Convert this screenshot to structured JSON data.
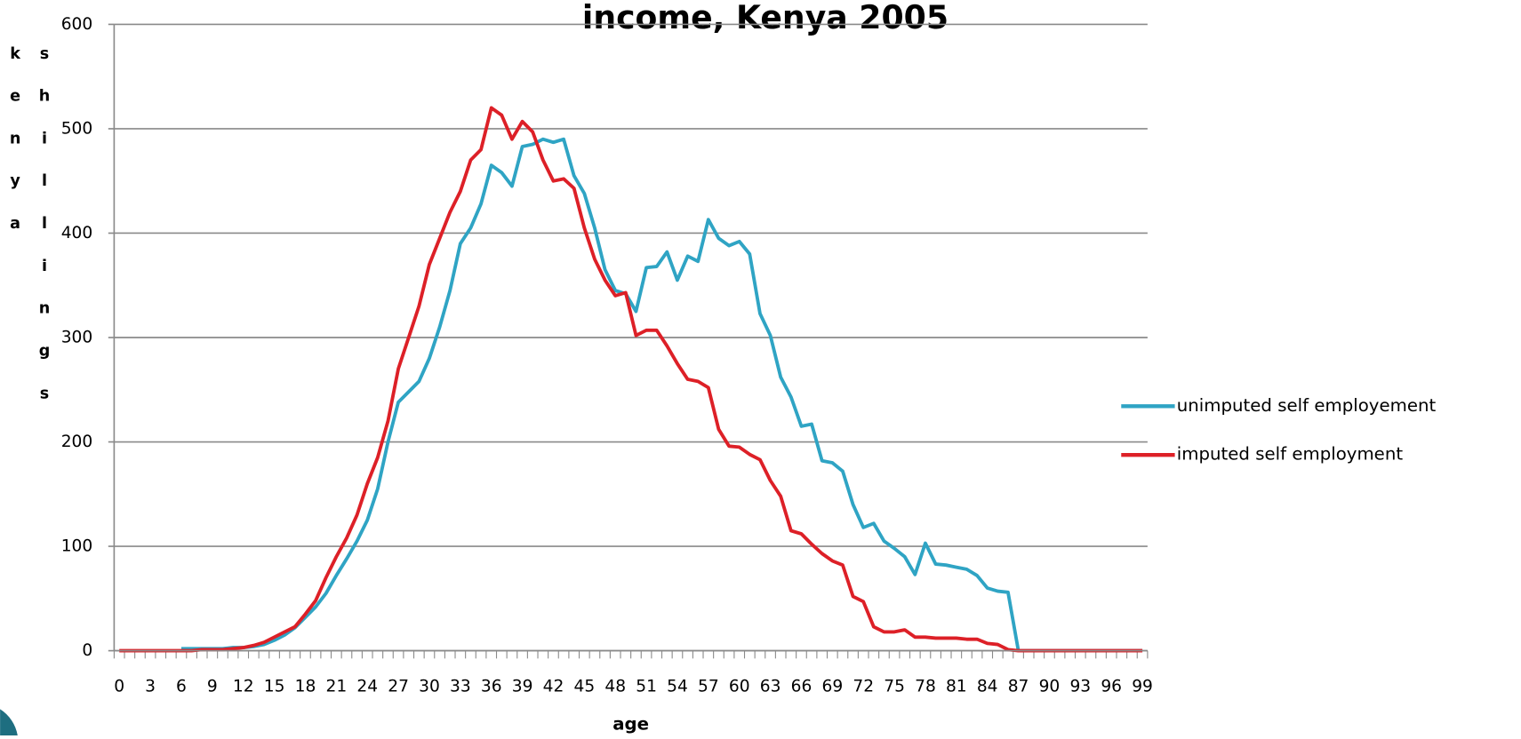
{
  "chart_data": {
    "type": "line",
    "title": "income, Kenya 2005",
    "x_label": "age",
    "y_label": "kenya shillings",
    "categories": [
      "0",
      null,
      null,
      "3",
      null,
      null,
      "6",
      null,
      null,
      "9",
      null,
      null,
      "12",
      null,
      null,
      "15",
      null,
      null,
      "18",
      null,
      null,
      "21",
      null,
      null,
      "24",
      null,
      null,
      "27",
      null,
      null,
      "30",
      null,
      null,
      "33",
      null,
      null,
      "36",
      null,
      null,
      "39",
      null,
      null,
      "42",
      null,
      null,
      "45",
      null,
      null,
      "48",
      null,
      null,
      "51",
      null,
      null,
      "54",
      null,
      null,
      "57",
      null,
      null,
      "60",
      null,
      null,
      "63",
      null,
      null,
      "66",
      null,
      null,
      "69",
      null,
      null,
      "72",
      null,
      null,
      "75",
      null,
      null,
      "78",
      null,
      null,
      "81",
      null,
      null,
      "84",
      null,
      null,
      "87",
      null,
      null,
      "90",
      null,
      null,
      "93",
      null,
      null,
      "96",
      null,
      null,
      "99"
    ],
    "series": [
      {
        "name": "unimputed self employement",
        "color": "#2fa4c4",
        "values": [
          null,
          null,
          null,
          null,
          null,
          null,
          2,
          2,
          2,
          2,
          2,
          3,
          3,
          4,
          6,
          10,
          15,
          22,
          32,
          42,
          55,
          72,
          88,
          105,
          125,
          155,
          200,
          238,
          248,
          258,
          280,
          310,
          345,
          390,
          405,
          428,
          465,
          458,
          445,
          483,
          485,
          490,
          487,
          490,
          455,
          438,
          405,
          365,
          345,
          342,
          325,
          367,
          368,
          382,
          355,
          378,
          373,
          413,
          395,
          388,
          392,
          380,
          323,
          302,
          262,
          243,
          215,
          217,
          182,
          180,
          172,
          140,
          118,
          122,
          105,
          98,
          90,
          73,
          103,
          83,
          82,
          80,
          78,
          72,
          60,
          57,
          56,
          0,
          0,
          0,
          0,
          0,
          0,
          0,
          0,
          0,
          0,
          0,
          0,
          0
        ]
      },
      {
        "name": "imputed self employment",
        "color": "#dd2027",
        "values": [
          0,
          0,
          0,
          0,
          0,
          0,
          0,
          0,
          1,
          1,
          1,
          2,
          3,
          5,
          8,
          13,
          18,
          23,
          35,
          48,
          70,
          90,
          108,
          130,
          160,
          185,
          220,
          270,
          300,
          330,
          370,
          395,
          420,
          440,
          470,
          480,
          520,
          513,
          490,
          507,
          497,
          470,
          450,
          452,
          443,
          405,
          375,
          355,
          340,
          343,
          302,
          307,
          307,
          292,
          275,
          260,
          258,
          252,
          212,
          196,
          195,
          188,
          183,
          163,
          148,
          115,
          112,
          102,
          93,
          86,
          82,
          52,
          47,
          23,
          18,
          18,
          20,
          13,
          13,
          12,
          12,
          12,
          11,
          11,
          7,
          6,
          1,
          0,
          0,
          0,
          0,
          0,
          0,
          0,
          0,
          0,
          0,
          0,
          0,
          0
        ]
      }
    ],
    "ylim": [
      0,
      600
    ],
    "yticks": [
      0,
      100,
      200,
      300,
      400,
      500,
      600
    ],
    "grid": true,
    "legend": "right"
  }
}
